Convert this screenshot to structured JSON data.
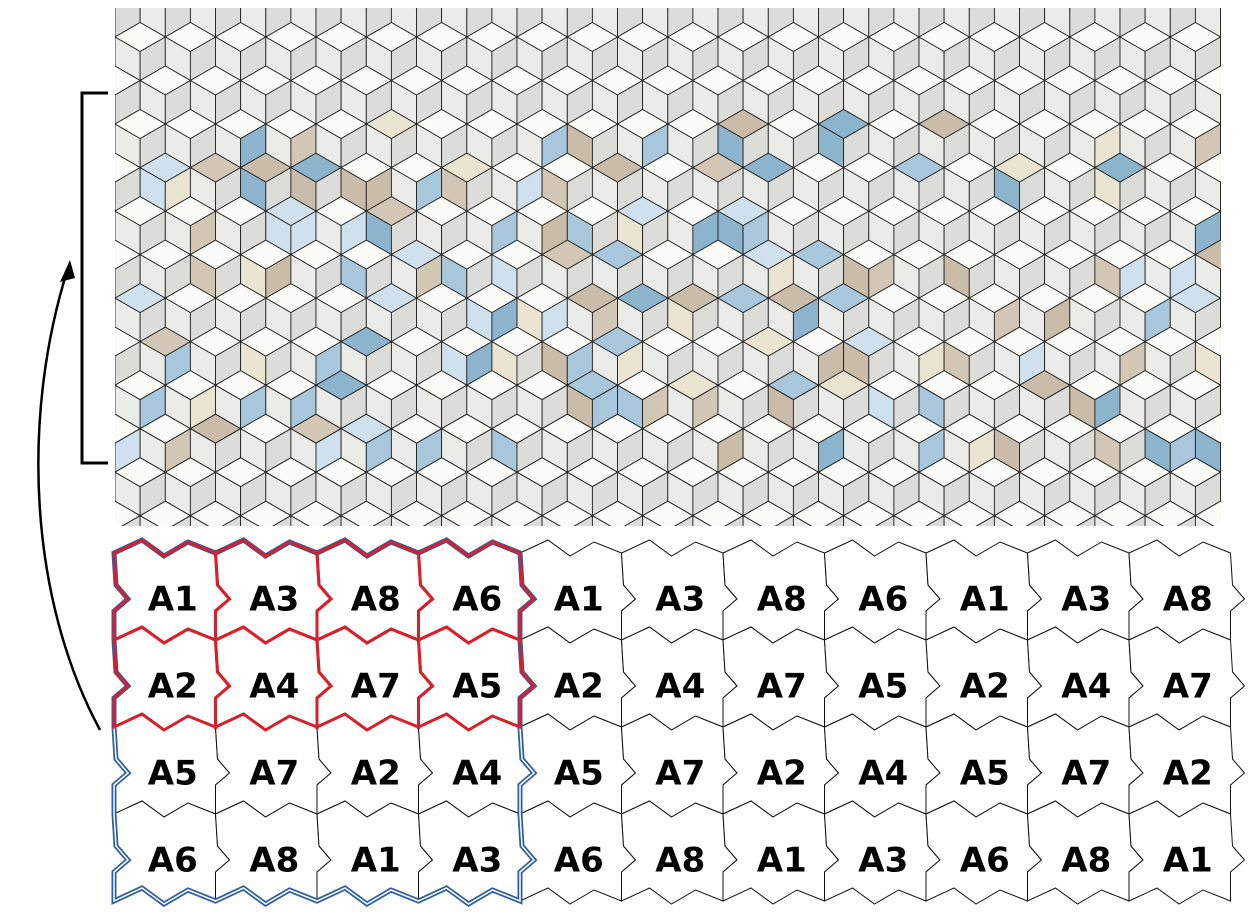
{
  "tiles": {
    "rows": [
      [
        "A1",
        "A3",
        "A8",
        "A6",
        "A1",
        "A3",
        "A8",
        "A6",
        "A1",
        "A3",
        "A8"
      ],
      [
        "A2",
        "A4",
        "A7",
        "A5",
        "A2",
        "A4",
        "A7",
        "A5",
        "A2",
        "A4",
        "A7"
      ],
      [
        "A5",
        "A7",
        "A2",
        "A4",
        "A5",
        "A7",
        "A2",
        "A4",
        "A5",
        "A7",
        "A2"
      ],
      [
        "A6",
        "A8",
        "A1",
        "A3",
        "A6",
        "A8",
        "A1",
        "A3",
        "A6",
        "A8",
        "A1"
      ]
    ]
  }
}
